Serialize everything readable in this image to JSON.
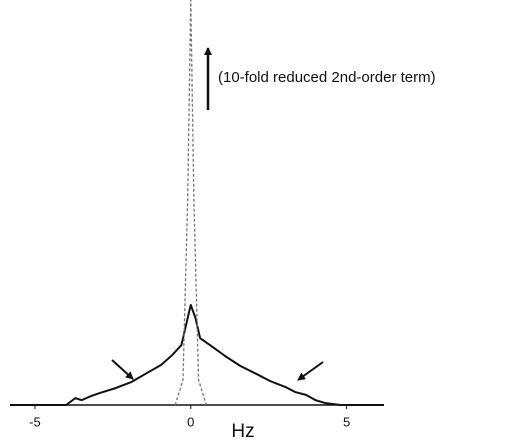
{
  "chart_data": {
    "type": "line",
    "annotation": "(10-fold reduced 2nd-order term)",
    "xlabel": "Hz",
    "xlim": [
      -5.8,
      6.2
    ],
    "xticks": [
      -5,
      0,
      5
    ],
    "ylim": [
      0,
      100
    ],
    "series": [
      {
        "color": "#111111",
        "dash": false,
        "x": [
          -5.8,
          -4.0,
          -3.7,
          -3.5,
          -3.2,
          -2.9,
          -2.4,
          -1.9,
          -1.45,
          -0.95,
          -0.6,
          -0.3,
          -0.15,
          0,
          0.15,
          0.3,
          0.65,
          1.1,
          1.6,
          2.1,
          2.55,
          3.05,
          3.35,
          3.7,
          4.0,
          4.3,
          4.8,
          6.2
        ],
        "values": [
          0,
          0,
          1.7,
          1.2,
          2.2,
          3.0,
          4.2,
          5.7,
          7.7,
          9.9,
          12.3,
          14.8,
          19.8,
          24.7,
          21.5,
          16.5,
          14.6,
          12.1,
          9.6,
          7.7,
          5.9,
          4.4,
          3.2,
          2.5,
          1.2,
          0.5,
          0,
          0
        ]
      },
      {
        "color": "#777777",
        "dash": true,
        "x": [
          -0.5,
          -0.25,
          -0.1,
          0,
          0.1,
          0.25,
          0.5
        ],
        "values": [
          0,
          6.2,
          50.6,
          100,
          50.6,
          6.2,
          0
        ]
      }
    ]
  }
}
